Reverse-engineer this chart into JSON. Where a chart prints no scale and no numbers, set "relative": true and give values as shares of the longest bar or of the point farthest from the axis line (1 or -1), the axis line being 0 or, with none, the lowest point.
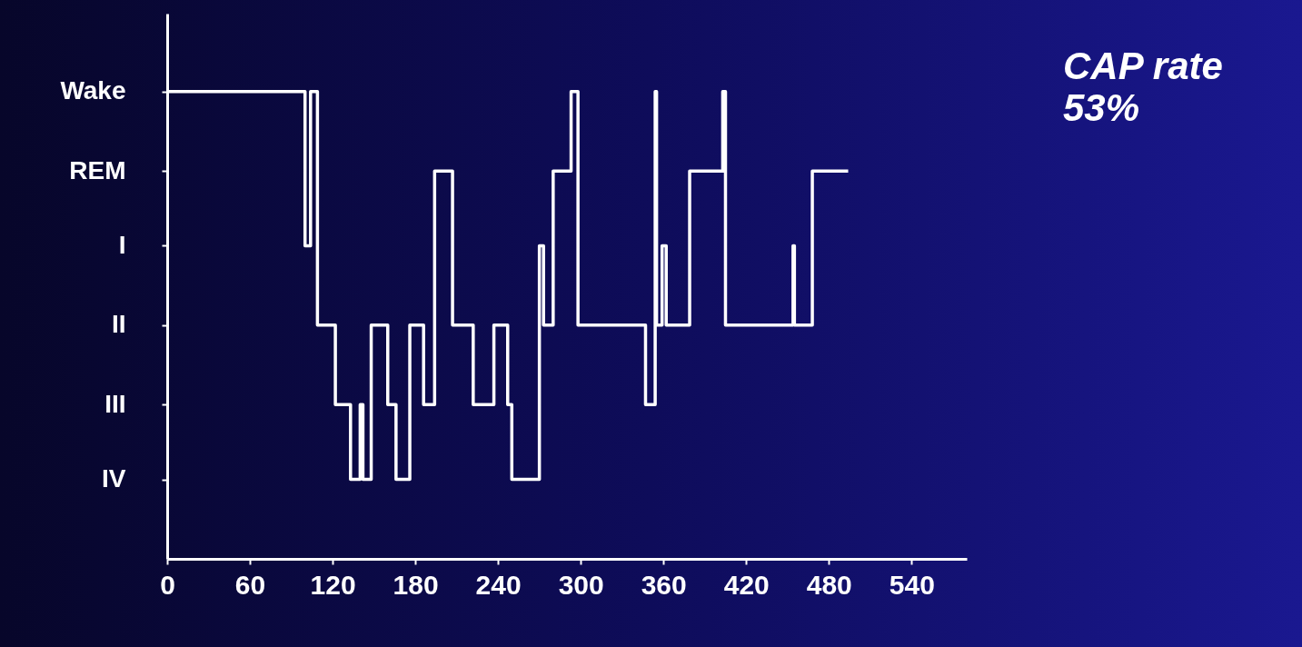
{
  "chart_data": {
    "type": "step",
    "x": [
      0,
      100,
      104,
      109,
      122,
      133,
      140,
      142,
      148,
      160,
      166,
      176,
      186,
      194,
      207,
      222,
      237,
      247,
      250,
      270,
      273,
      280,
      293,
      298,
      347,
      354,
      355,
      359,
      362,
      379,
      403,
      405,
      454,
      455,
      468,
      494
    ],
    "values": [
      1,
      0.67,
      1,
      0.5,
      0.33,
      0.17,
      0.33,
      0.17,
      0.5,
      0.33,
      0.17,
      0.5,
      0.33,
      0.83,
      0.5,
      0.33,
      0.5,
      0.33,
      0.17,
      0.67,
      0.5,
      0.83,
      1,
      0.5,
      0.33,
      1,
      0.5,
      0.67,
      0.5,
      0.83,
      1,
      0.5,
      0.67,
      0.5,
      0.83,
      0.83
    ],
    "relative": true,
    "color": "#ffffff",
    "xlim": [
      0,
      580
    ],
    "xticks": [
      0,
      60,
      120,
      180,
      240,
      300,
      360,
      420,
      480,
      540
    ],
    "annotations": [
      "Wake",
      "REM",
      "I",
      "II",
      "III",
      "IV",
      "CAP rate",
      "53%"
    ]
  }
}
